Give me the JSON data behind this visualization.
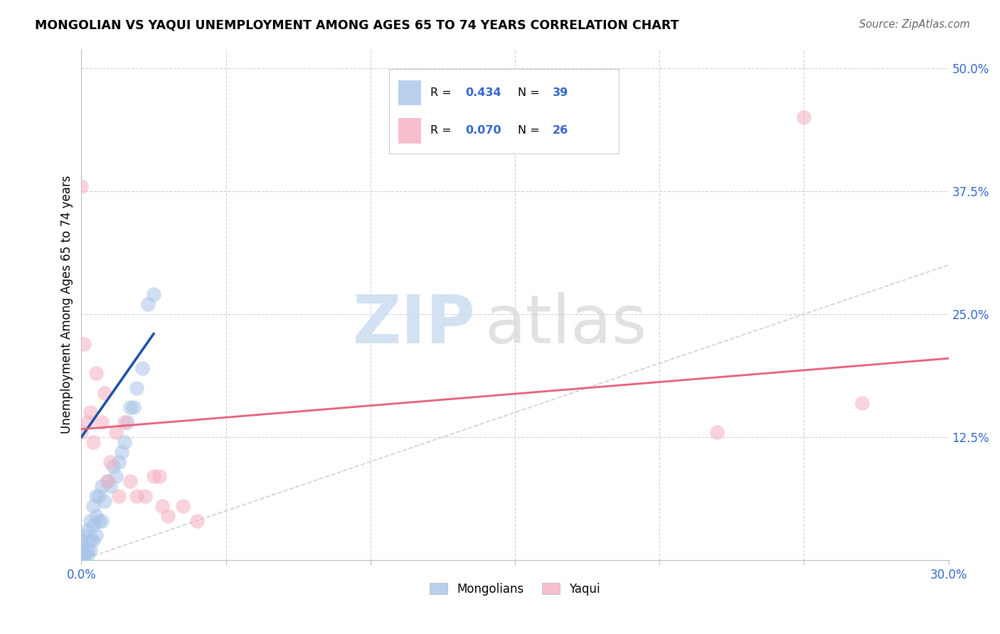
{
  "title": "MONGOLIAN VS YAQUI UNEMPLOYMENT AMONG AGES 65 TO 74 YEARS CORRELATION CHART",
  "source": "Source: ZipAtlas.com",
  "ylabel_label": "Unemployment Among Ages 65 to 74 years",
  "xlim": [
    0.0,
    0.3
  ],
  "ylim": [
    0.0,
    0.52
  ],
  "x_ticks": [
    0.0,
    0.05,
    0.1,
    0.15,
    0.2,
    0.25,
    0.3
  ],
  "x_tick_labels": [
    "0.0%",
    "",
    "",
    "",
    "",
    "",
    "30.0%"
  ],
  "y_ticks": [
    0.0,
    0.125,
    0.25,
    0.375,
    0.5
  ],
  "y_tick_labels": [
    "",
    "12.5%",
    "25.0%",
    "37.5%",
    "50.0%"
  ],
  "mongolian_color": "#a8c4e8",
  "yaqui_color": "#f5afc0",
  "mongolian_line_color": "#1a4faa",
  "yaqui_line_color": "#e8607a",
  "diagonal_color": "#c0cdde",
  "grid_color": "#d0d0d0",
  "mongolian_x": [
    0.0,
    0.0,
    0.0,
    0.0,
    0.0,
    0.001,
    0.001,
    0.001,
    0.002,
    0.002,
    0.002,
    0.003,
    0.003,
    0.003,
    0.004,
    0.004,
    0.004,
    0.005,
    0.005,
    0.005,
    0.006,
    0.006,
    0.007,
    0.007,
    0.008,
    0.009,
    0.01,
    0.011,
    0.012,
    0.013,
    0.014,
    0.015,
    0.016,
    0.017,
    0.018,
    0.019,
    0.021,
    0.023,
    0.025
  ],
  "mongolian_y": [
    0.0,
    0.005,
    0.01,
    0.015,
    0.02,
    0.0,
    0.005,
    0.025,
    0.005,
    0.01,
    0.03,
    0.01,
    0.02,
    0.04,
    0.02,
    0.035,
    0.055,
    0.025,
    0.045,
    0.065,
    0.04,
    0.065,
    0.04,
    0.075,
    0.06,
    0.08,
    0.075,
    0.095,
    0.085,
    0.1,
    0.11,
    0.12,
    0.14,
    0.155,
    0.155,
    0.175,
    0.195,
    0.26,
    0.27
  ],
  "yaqui_x": [
    0.0,
    0.0,
    0.001,
    0.002,
    0.003,
    0.004,
    0.005,
    0.007,
    0.008,
    0.009,
    0.01,
    0.012,
    0.013,
    0.015,
    0.017,
    0.019,
    0.022,
    0.025,
    0.027,
    0.028,
    0.03,
    0.035,
    0.04,
    0.22,
    0.25,
    0.27
  ],
  "yaqui_y": [
    0.13,
    0.38,
    0.22,
    0.14,
    0.15,
    0.12,
    0.19,
    0.14,
    0.17,
    0.08,
    0.1,
    0.13,
    0.065,
    0.14,
    0.08,
    0.065,
    0.065,
    0.085,
    0.085,
    0.055,
    0.045,
    0.055,
    0.04,
    0.13,
    0.45,
    0.16
  ],
  "mongolian_trend_x": [
    0.0,
    0.025
  ],
  "mongolian_trend_y": [
    0.125,
    0.23
  ],
  "yaqui_trend_x": [
    0.0,
    0.3
  ],
  "yaqui_trend_y": [
    0.133,
    0.205
  ],
  "legend_R1": "0.434",
  "legend_N1": "39",
  "legend_R2": "0.070",
  "legend_N2": "26"
}
